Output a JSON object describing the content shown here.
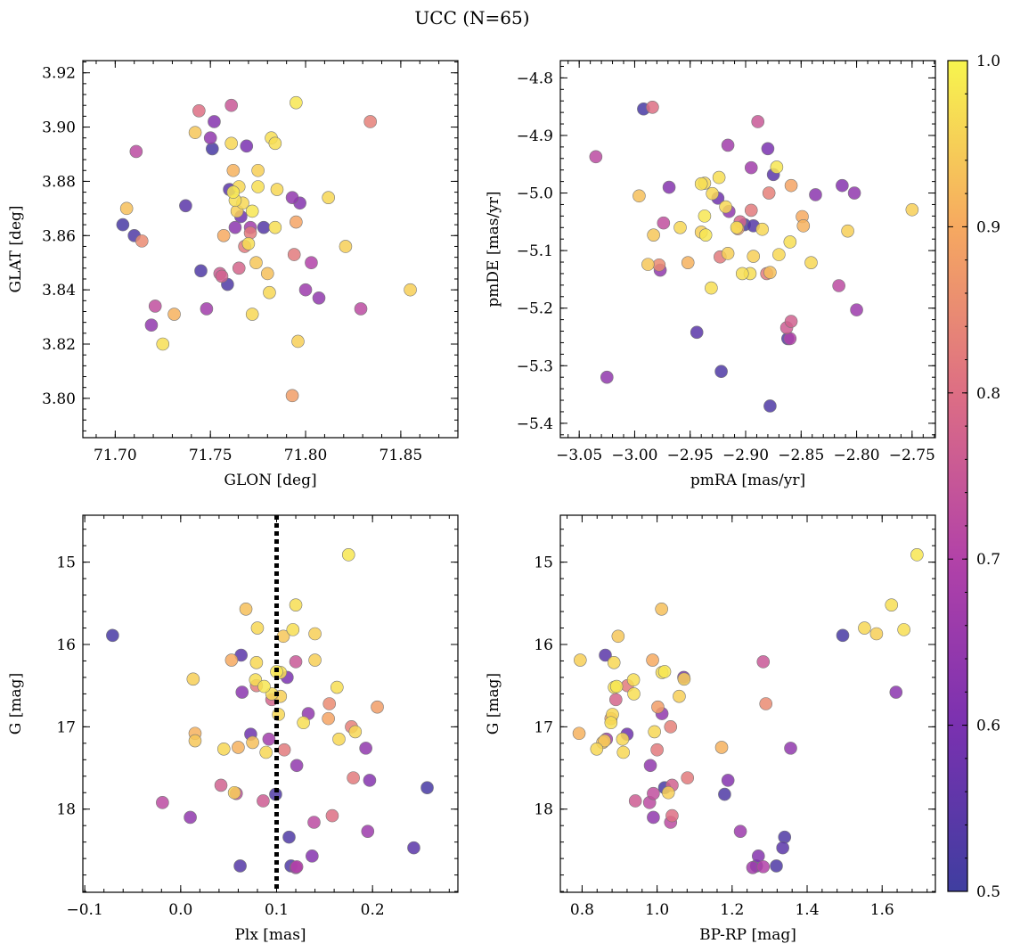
{
  "figure": {
    "title": "UCC (N=65)"
  },
  "colorbar": {
    "min": 0.5,
    "max": 1.0,
    "ticks": [
      0.5,
      0.6,
      0.7,
      0.8,
      0.9,
      1.0
    ],
    "tick_labels": [
      "0.5",
      "0.6",
      "0.7",
      "0.8",
      "0.9",
      "1.0"
    ]
  },
  "points": [
    {
      "glon": 71.704,
      "glat": 3.864,
      "pmra": -2.992,
      "pmde": -4.854,
      "plx": -0.071,
      "g": 15.89,
      "bprp": 1.495,
      "p": 0.52
    },
    {
      "glon": 71.706,
      "glat": 3.87,
      "pmra": -2.996,
      "pmde": -5.005,
      "plx": 0.068,
      "g": 15.57,
      "bprp": 1.012,
      "p": 0.93
    },
    {
      "glon": 71.711,
      "glat": 3.891,
      "pmra": -3.035,
      "pmde": -4.937,
      "plx": -0.019,
      "g": 17.92,
      "bprp": 0.98,
      "p": 0.72
    },
    {
      "glon": 71.714,
      "glat": 3.858,
      "pmra": -2.978,
      "pmde": -5.125,
      "plx": 0.155,
      "g": 16.72,
      "bprp": 1.29,
      "p": 0.85
    },
    {
      "glon": 71.719,
      "glat": 3.827,
      "pmra": -3.025,
      "pmde": -5.32,
      "plx": 0.01,
      "g": 18.1,
      "bprp": 0.99,
      "p": 0.64
    },
    {
      "glon": 71.721,
      "glat": 3.834,
      "pmra": -2.974,
      "pmde": -5.052,
      "plx": 0.058,
      "g": 17.81,
      "bprp": 0.99,
      "p": 0.73
    },
    {
      "glon": 71.725,
      "glat": 3.82,
      "pmra": -2.931,
      "pmde": -5.165,
      "plx": 0.12,
      "g": 15.52,
      "bprp": 1.625,
      "p": 0.97
    },
    {
      "glon": 71.731,
      "glat": 3.831,
      "pmra": -2.952,
      "pmde": -5.121,
      "plx": 0.015,
      "g": 17.08,
      "bprp": 0.792,
      "p": 0.91
    },
    {
      "glon": 71.737,
      "glat": 3.871,
      "pmra": -2.944,
      "pmde": -5.242,
      "plx": 0.063,
      "g": 16.13,
      "bprp": 0.862,
      "p": 0.55
    },
    {
      "glon": 71.742,
      "glat": 3.898,
      "pmra": -2.988,
      "pmde": -5.124,
      "plx": 0.015,
      "g": 17.17,
      "bprp": 0.86,
      "p": 0.94
    },
    {
      "glon": 71.744,
      "glat": 3.906,
      "pmra": -2.984,
      "pmde": -4.851,
      "plx": 0.158,
      "g": 18.08,
      "bprp": 1.04,
      "p": 0.8
    },
    {
      "glon": 71.745,
      "glat": 3.847,
      "pmra": -2.922,
      "pmde": -5.31,
      "plx": 0.113,
      "g": 18.34,
      "bprp": 1.34,
      "p": 0.53
    },
    {
      "glon": 71.748,
      "glat": 3.833,
      "pmra": -2.916,
      "pmde": -4.917,
      "plx": 0.12,
      "g": 18.71,
      "bprp": 1.255,
      "p": 0.67
    },
    {
      "glon": 71.75,
      "glat": 3.896,
      "pmra": -2.977,
      "pmde": -5.134,
      "plx": 0.133,
      "g": 16.84,
      "bprp": 1.013,
      "p": 0.64
    },
    {
      "glon": 71.751,
      "glat": 3.892,
      "pmra": -2.901,
      "pmde": -5.055,
      "plx": 0.257,
      "g": 17.74,
      "bprp": 1.02,
      "p": 0.52
    },
    {
      "glon": 71.752,
      "glat": 3.902,
      "pmra": -2.969,
      "pmde": -4.99,
      "plx": 0.137,
      "g": 18.57,
      "bprp": 1.27,
      "p": 0.62
    },
    {
      "glon": 71.755,
      "glat": 3.846,
      "pmra": -2.863,
      "pmde": -5.234,
      "plx": 0.086,
      "g": 17.9,
      "bprp": 0.942,
      "p": 0.76
    },
    {
      "glon": 71.756,
      "glat": 3.845,
      "pmra": -2.859,
      "pmde": -5.223,
      "plx": 0.042,
      "g": 17.71,
      "bprp": 1.04,
      "p": 0.77
    },
    {
      "glon": 71.757,
      "glat": 3.86,
      "pmra": -2.849,
      "pmde": -5.041,
      "plx": 0.053,
      "g": 16.19,
      "bprp": 0.988,
      "p": 0.9
    },
    {
      "glon": 71.759,
      "glat": 3.842,
      "pmra": -2.862,
      "pmde": -5.253,
      "plx": 0.099,
      "g": 17.82,
      "bprp": 1.18,
      "p": 0.53
    },
    {
      "glon": 71.76,
      "glat": 3.877,
      "pmra": -2.875,
      "pmde": -4.968,
      "plx": 0.243,
      "g": 18.47,
      "bprp": 1.335,
      "p": 0.55
    },
    {
      "glon": 71.761,
      "glat": 3.894,
      "pmra": -2.937,
      "pmde": -4.983,
      "plx": 0.079,
      "g": 16.22,
      "bprp": 0.885,
      "p": 0.96
    },
    {
      "glon": 71.761,
      "glat": 3.908,
      "pmra": -2.889,
      "pmde": -4.876,
      "plx": 0.12,
      "g": 16.21,
      "bprp": 1.283,
      "p": 0.75
    },
    {
      "glon": 71.762,
      "glat": 3.884,
      "pmra": -2.848,
      "pmde": -5.057,
      "plx": 0.06,
      "g": 17.25,
      "bprp": 1.172,
      "p": 0.91
    },
    {
      "glon": 71.762,
      "glat": 3.876,
      "pmra": -2.936,
      "pmde": -5.073,
      "plx": 0.1,
      "g": 16.33,
      "bprp": 1.02,
      "p": 0.98
    },
    {
      "glon": 71.763,
      "glat": 3.873,
      "pmra": -2.924,
      "pmde": -4.973,
      "plx": 0.078,
      "g": 16.43,
      "bprp": 0.937,
      "p": 0.97
    },
    {
      "glon": 71.763,
      "glat": 3.863,
      "pmra": -2.837,
      "pmde": -5.003,
      "plx": 0.064,
      "g": 16.58,
      "bprp": 1.637,
      "p": 0.63
    },
    {
      "glon": 71.764,
      "glat": 3.869,
      "pmra": -2.916,
      "pmde": -5.105,
      "plx": 0.104,
      "g": 16.63,
      "bprp": 1.059,
      "p": 0.95
    },
    {
      "glon": 71.765,
      "glat": 3.848,
      "pmra": -2.905,
      "pmde": -5.05,
      "plx": 0.095,
      "g": 16.67,
      "bprp": 0.89,
      "p": 0.78
    },
    {
      "glon": 71.765,
      "glat": 3.878,
      "pmra": -2.93,
      "pmde": -5.001,
      "plx": 0.102,
      "g": 16.85,
      "bprp": 0.881,
      "p": 0.96
    },
    {
      "glon": 71.766,
      "glat": 3.867,
      "pmra": -2.925,
      "pmde": -5.009,
      "plx": 0.073,
      "g": 17.09,
      "bprp": 0.92,
      "p": 0.58
    },
    {
      "glon": 71.767,
      "glat": 3.872,
      "pmra": -2.918,
      "pmde": -5.024,
      "plx": 0.089,
      "g": 17.31,
      "bprp": 0.91,
      "p": 0.96
    },
    {
      "glon": 71.768,
      "glat": 3.856,
      "pmra": -2.881,
      "pmde": -5.14,
      "plx": 0.108,
      "g": 17.28,
      "bprp": 1.0,
      "p": 0.82
    },
    {
      "glon": 71.769,
      "glat": 3.893,
      "pmra": -2.88,
      "pmde": -4.923,
      "plx": 0.111,
      "g": 16.4,
      "bprp": 1.071,
      "p": 0.6
    },
    {
      "glon": 71.77,
      "glat": 3.857,
      "pmra": -2.896,
      "pmde": -5.14,
      "plx": 0.128,
      "g": 16.95,
      "bprp": 0.877,
      "p": 0.97
    },
    {
      "glon": 71.771,
      "glat": 3.863,
      "pmra": -2.895,
      "pmde": -4.956,
      "plx": 0.092,
      "g": 17.15,
      "bprp": 0.865,
      "p": 0.67
    },
    {
      "glon": 71.771,
      "glat": 3.861,
      "pmra": -2.923,
      "pmde": -5.111,
      "plx": 0.079,
      "g": 16.5,
      "bprp": 0.921,
      "p": 0.82
    },
    {
      "glon": 71.772,
      "glat": 3.869,
      "pmra": -2.937,
      "pmde": -5.04,
      "plx": 0.087,
      "g": 16.51,
      "bprp": 0.892,
      "p": 0.98
    },
    {
      "glon": 71.772,
      "glat": 3.831,
      "pmra": -2.959,
      "pmde": -5.06,
      "plx": 0.08,
      "g": 15.8,
      "bprp": 1.553,
      "p": 0.96
    },
    {
      "glon": 71.774,
      "glat": 3.85,
      "pmra": -2.983,
      "pmde": -5.073,
      "plx": 0.107,
      "g": 15.9,
      "bprp": 0.896,
      "p": 0.94
    },
    {
      "glon": 71.775,
      "glat": 3.878,
      "pmra": -2.94,
      "pmde": -4.984,
      "plx": 0.117,
      "g": 15.82,
      "bprp": 1.658,
      "p": 0.97
    },
    {
      "glon": 71.775,
      "glat": 3.884,
      "pmra": -2.94,
      "pmde": -5.068,
      "plx": 0.14,
      "g": 15.87,
      "bprp": 1.585,
      "p": 0.95
    },
    {
      "glon": 71.778,
      "glat": 3.863,
      "pmra": -2.893,
      "pmde": -5.057,
      "plx": 0.062,
      "g": 18.69,
      "bprp": 1.265,
      "p": 0.54
    },
    {
      "glon": 71.78,
      "glat": 3.846,
      "pmra": -2.878,
      "pmde": -5.138,
      "plx": 0.075,
      "g": 17.19,
      "bprp": 0.855,
      "p": 0.93
    },
    {
      "glon": 71.781,
      "glat": 3.839,
      "pmra": -2.885,
      "pmde": -5.063,
      "plx": 0.045,
      "g": 17.27,
      "bprp": 0.839,
      "p": 0.96
    },
    {
      "glon": 71.782,
      "glat": 3.896,
      "pmra": -2.908,
      "pmde": -5.06,
      "plx": 0.095,
      "g": 16.6,
      "bprp": 0.938,
      "p": 0.97
    },
    {
      "glon": 71.784,
      "glat": 3.894,
      "pmra": -2.903,
      "pmde": -5.14,
      "plx": 0.104,
      "g": 16.34,
      "bprp": 1.013,
      "p": 0.97
    },
    {
      "glon": 71.784,
      "glat": 3.863,
      "pmra": -2.86,
      "pmde": -5.085,
      "plx": 0.163,
      "g": 16.52,
      "bprp": 0.886,
      "p": 0.97
    },
    {
      "glon": 71.785,
      "glat": 3.877,
      "pmra": -2.87,
      "pmde": -5.107,
      "plx": 0.165,
      "g": 17.15,
      "bprp": 0.908,
      "p": 0.96
    },
    {
      "glon": 71.793,
      "glat": 3.874,
      "pmra": -2.915,
      "pmde": -5.032,
      "plx": 0.193,
      "g": 17.26,
      "bprp": 1.356,
      "p": 0.64
    },
    {
      "glon": 71.793,
      "glat": 3.801,
      "pmra": -2.907,
      "pmde": -5.062,
      "plx": 0.205,
      "g": 16.76,
      "bprp": 1.002,
      "p": 0.88
    },
    {
      "glon": 71.794,
      "glat": 3.853,
      "pmra": -2.895,
      "pmde": -5.03,
      "plx": 0.18,
      "g": 17.62,
      "bprp": 1.081,
      "p": 0.82
    },
    {
      "glon": 71.795,
      "glat": 3.909,
      "pmra": -2.872,
      "pmde": -4.955,
      "plx": 0.175,
      "g": 14.91,
      "bprp": 1.693,
      "p": 0.98
    },
    {
      "glon": 71.795,
      "glat": 3.865,
      "pmra": -2.859,
      "pmde": -4.987,
      "plx": 0.154,
      "g": 16.9,
      "bprp": 0.877,
      "p": 0.89
    },
    {
      "glon": 71.796,
      "glat": 3.821,
      "pmra": -2.893,
      "pmde": -5.11,
      "plx": 0.056,
      "g": 17.8,
      "bprp": 1.03,
      "p": 0.95
    },
    {
      "glon": 71.797,
      "glat": 3.872,
      "pmra": -2.813,
      "pmde": -4.987,
      "plx": 0.197,
      "g": 17.65,
      "bprp": 1.189,
      "p": 0.62
    },
    {
      "glon": 71.807,
      "glat": 3.837,
      "pmra": -2.802,
      "pmde": -5.0,
      "plx": 0.121,
      "g": 17.47,
      "bprp": 0.982,
      "p": 0.64
    },
    {
      "glon": 71.812,
      "glat": 3.874,
      "pmra": -2.841,
      "pmde": -5.121,
      "plx": 0.182,
      "g": 17.06,
      "bprp": 0.993,
      "p": 0.96
    },
    {
      "glon": 71.821,
      "glat": 3.856,
      "pmra": -2.808,
      "pmde": -5.066,
      "plx": 0.14,
      "g": 16.19,
      "bprp": 0.795,
      "p": 0.95
    },
    {
      "glon": 71.829,
      "glat": 3.833,
      "pmra": -2.816,
      "pmde": -5.161,
      "plx": 0.139,
      "g": 18.16,
      "bprp": 1.036,
      "p": 0.72
    },
    {
      "glon": 71.834,
      "glat": 3.902,
      "pmra": -2.879,
      "pmde": -5.0,
      "plx": 0.178,
      "g": 17.0,
      "bprp": 1.036,
      "p": 0.83
    },
    {
      "glon": 71.855,
      "glat": 3.84,
      "pmra": -2.75,
      "pmde": -5.029,
      "plx": 0.013,
      "g": 16.42,
      "bprp": 1.072,
      "p": 0.95
    },
    {
      "glon": 71.71,
      "glat": 3.86,
      "pmra": -2.878,
      "pmde": -5.37,
      "plx": 0.115,
      "g": 18.69,
      "bprp": 1.318,
      "p": 0.53
    },
    {
      "glon": 71.803,
      "glat": 3.85,
      "pmra": -2.86,
      "pmde": -5.253,
      "plx": 0.121,
      "g": 18.7,
      "bprp": 1.283,
      "p": 0.7
    },
    {
      "glon": 71.8,
      "glat": 3.84,
      "pmra": -2.8,
      "pmde": -5.203,
      "plx": 0.195,
      "g": 18.27,
      "bprp": 1.222,
      "p": 0.66
    }
  ],
  "chart_data": [
    {
      "type": "scatter",
      "title": "",
      "xlabel": "GLON [deg]",
      "ylabel": "GLAT [deg]",
      "x_field": "glon",
      "y_field": "glat",
      "xlim": [
        71.683,
        71.88
      ],
      "ylim": [
        3.7855,
        3.9245
      ],
      "xticks": [
        71.7,
        71.75,
        71.8,
        71.85
      ],
      "xtick_labels": [
        "71.70",
        "71.75",
        "71.80",
        "71.85"
      ],
      "yticks": [
        3.8,
        3.82,
        3.84,
        3.86,
        3.88,
        3.9,
        3.92
      ],
      "ytick_labels": [
        "3.80",
        "3.82",
        "3.84",
        "3.86",
        "3.88",
        "3.90",
        "3.92"
      ],
      "invert_y": false
    },
    {
      "type": "scatter",
      "title": "",
      "xlabel": "pmRA [mas/yr]",
      "ylabel": "pmDE [mas/yr]",
      "x_field": "pmra",
      "y_field": "pmde",
      "xlim": [
        -3.067,
        -2.729
      ],
      "ylim": [
        -5.425,
        -4.77
      ],
      "xticks": [
        -3.05,
        -3.0,
        -2.95,
        -2.9,
        -2.85,
        -2.8,
        -2.75
      ],
      "xtick_labels": [
        "−3.05",
        "−3.00",
        "−2.95",
        "−2.90",
        "−2.85",
        "−2.80",
        "−2.75"
      ],
      "yticks": [
        -5.4,
        -5.3,
        -5.2,
        -5.1,
        -5.0,
        -4.9,
        -4.8
      ],
      "ytick_labels": [
        "−5.4",
        "−5.3",
        "−5.2",
        "−5.1",
        "−5.0",
        "−4.9",
        "−4.8"
      ],
      "invert_y": false
    },
    {
      "type": "scatter",
      "title": "",
      "xlabel": "Plx [mas]",
      "ylabel": "G [mag]",
      "x_field": "plx",
      "y_field": "g",
      "xlim": [
        -0.102,
        0.289
      ],
      "ylim": [
        14.43,
        19.01
      ],
      "xticks": [
        -0.1,
        0.0,
        0.1,
        0.2
      ],
      "xtick_labels": [
        "−0.1",
        "0.0",
        "0.1",
        "0.2"
      ],
      "yticks": [
        15,
        16,
        17,
        18
      ],
      "ytick_labels": [
        "15",
        "16",
        "17",
        "18"
      ],
      "invert_y": true,
      "vline": {
        "x": 0.1,
        "style": "dotted"
      }
    },
    {
      "type": "scatter",
      "title": "",
      "xlabel": "BP-RP [mag]",
      "ylabel": "G [mag]",
      "x_field": "bprp",
      "y_field": "g",
      "xlim": [
        0.742,
        1.742
      ],
      "ylim": [
        14.43,
        19.01
      ],
      "xticks": [
        0.8,
        1.0,
        1.2,
        1.4,
        1.6
      ],
      "xtick_labels": [
        "0.8",
        "1.0",
        "1.2",
        "1.4",
        "1.6"
      ],
      "yticks": [
        15,
        16,
        17,
        18
      ],
      "ytick_labels": [
        "15",
        "16",
        "17",
        "18"
      ],
      "invert_y": true
    }
  ]
}
